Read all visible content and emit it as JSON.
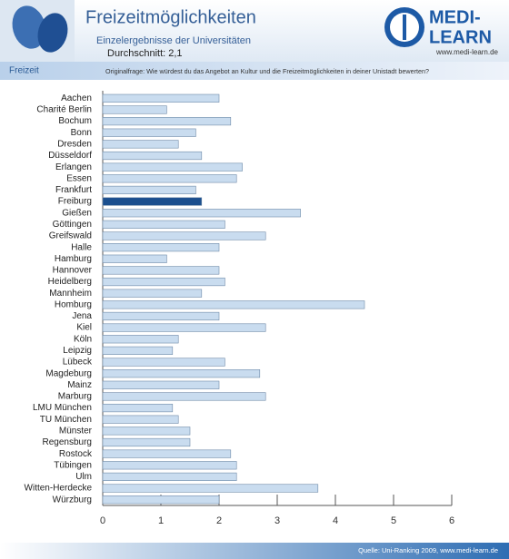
{
  "header": {
    "title": "Freizeitmöglichkeiten",
    "subtitle": "Einzelergebnisse der Universitäten",
    "average": "Durchschnitt: 2,1",
    "section": "Freizeit",
    "question": "Originalfrage: Wie würdest du das Angebot an Kultur und die Freizeitmöglichkeiten in deiner Unistadt bewerten?"
  },
  "logo": {
    "line1": "MEDI-",
    "line2": "LEARN",
    "url": "www.medi-learn.de"
  },
  "footer": {
    "source": "Quelle: Uni-Ranking 2009, www.medi-learn.de"
  },
  "chart_data": {
    "type": "hbar",
    "categories": [
      "Aachen",
      "Charité  Berlin",
      "Bochum",
      "Bonn",
      "Dresden",
      "Düsseldorf",
      "Erlangen",
      "Essen",
      "Frankfurt",
      "Freiburg",
      "Gießen",
      "Göttingen",
      "Greifswald",
      "Halle",
      "Hamburg",
      "Hannover",
      "Heidelberg",
      "Mannheim",
      "Homburg",
      "Jena",
      "Kiel",
      "Köln",
      "Leipzig",
      "Lübeck",
      "Magdeburg",
      "Mainz",
      "Marburg",
      "LMU München",
      "TU München",
      "Münster",
      "Regensburg",
      "Rostock",
      "Tübingen",
      "Ulm",
      "Witten-Herdecke",
      "Würzburg"
    ],
    "values": [
      2.0,
      1.1,
      2.2,
      1.6,
      1.3,
      1.7,
      2.4,
      2.3,
      1.6,
      1.7,
      3.4,
      2.1,
      2.8,
      2.0,
      1.1,
      2.0,
      2.1,
      1.7,
      4.5,
      2.0,
      2.8,
      1.3,
      1.2,
      2.1,
      2.7,
      2.0,
      2.8,
      1.2,
      1.3,
      1.5,
      1.5,
      2.2,
      2.3,
      2.3,
      3.7,
      2.0
    ],
    "color": "#c9dcef",
    "highlight_color": "#1b4f8e",
    "highlight_index": 9,
    "xlim": [
      0,
      6
    ],
    "xticks": [
      0,
      1,
      2,
      3,
      4,
      5,
      6
    ]
  }
}
